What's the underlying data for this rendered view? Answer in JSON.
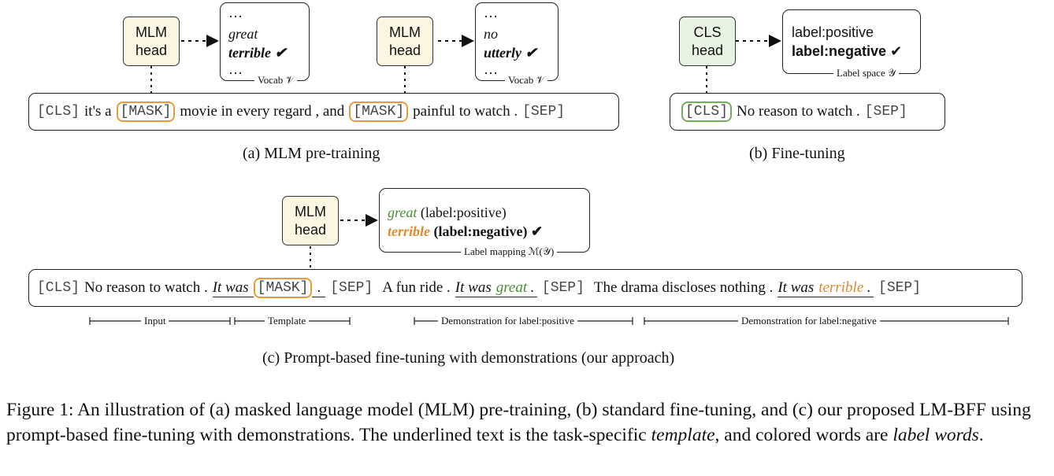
{
  "panel_a": {
    "heads": [
      {
        "line1": "MLM",
        "line2": "head"
      },
      {
        "line1": "MLM",
        "line2": "head"
      }
    ],
    "vocab_boxes": [
      {
        "dots_top": "…",
        "word1": "great",
        "word2": "terrible",
        "check": "✔",
        "dots_bottom": "…",
        "label": "Vocab 𝒱"
      },
      {
        "dots_top": "…",
        "word1": "no",
        "word2": "utterly",
        "check": "✔",
        "dots_bottom": "…",
        "label": "Vocab 𝒱"
      }
    ],
    "sentence": {
      "cls": "[CLS]",
      "t1": "it's a",
      "mask1": "[MASK]",
      "t2": "movie in every regard , and",
      "mask2": "[MASK]",
      "t3": "painful to watch .",
      "sep": "[SEP]"
    },
    "caption": "(a) MLM pre-training"
  },
  "panel_b": {
    "head": {
      "line1": "CLS",
      "line2": "head"
    },
    "label_box": {
      "line1": "label:positive",
      "line2": "label:negative",
      "check": "✔",
      "label": "Label space 𝒴"
    },
    "sentence": {
      "cls": "[CLS]",
      "text": "No reason to watch .",
      "sep": "[SEP]"
    },
    "caption": "(b) Fine-tuning"
  },
  "panel_c": {
    "head": {
      "line1": "MLM",
      "line2": "head"
    },
    "mapping_box": {
      "w1": "great",
      "l1": "(label:positive)",
      "w2": "terrible",
      "l2": "(label:negative)",
      "check": "✔",
      "label": "Label mapping ℳ(𝒴)"
    },
    "sentence": {
      "cls": "[CLS]",
      "input": "No reason to watch .",
      "tmpl": "It was",
      "mask": "[MASK]",
      "dot": ".",
      "sep1": "[SEP]",
      "demo1": "A fun ride .",
      "tmpl2": "It was",
      "w_pos": "great",
      "dot2": ".",
      "sep2": "[SEP]",
      "demo2": "The drama discloses nothing .",
      "tmpl3": "It was",
      "w_neg": "terrible",
      "dot3": ".",
      "sep3": "[SEP]"
    },
    "brackets": [
      "Input",
      "Template",
      "Demonstration for label:positive",
      "Demonstration for label:negative"
    ],
    "caption": "(c) Prompt-based fine-tuning with demonstrations (our approach)"
  },
  "figure_caption": {
    "prefix": "Figure 1: An illustration of (a) masked language model (MLM) pre-training, (b) standard fine-tuning, and (c) our proposed LM-BFF using prompt-based fine-tuning with demonstrations. The underlined text is the task-specific ",
    "em1": "template",
    "middle": ", and colored words are ",
    "em2": "label words",
    "suffix": "."
  },
  "colors": {
    "mask_orange": "#e59a40",
    "label_orange": "#e08a2e",
    "label_green": "#4c8c35",
    "mlm_fill": "#fbf6e2",
    "cls_fill": "#e8f3e3"
  }
}
